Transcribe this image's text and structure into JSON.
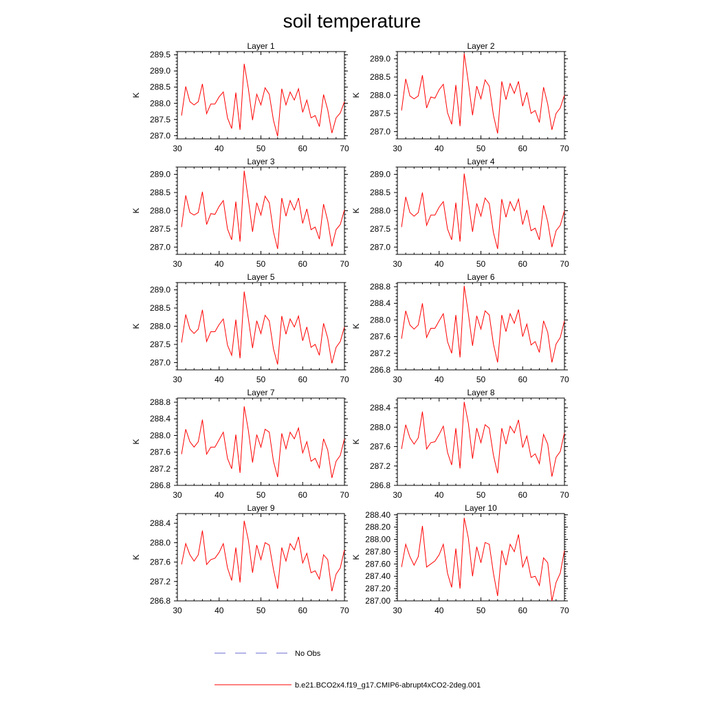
{
  "chart_data": {
    "type": "line",
    "title": "soil temperature",
    "x": [
      31,
      32,
      33,
      34,
      35,
      36,
      37,
      38,
      39,
      40,
      41,
      42,
      43,
      44,
      45,
      46,
      47,
      48,
      49,
      50,
      51,
      52,
      53,
      54,
      55,
      56,
      57,
      58,
      59,
      60,
      61,
      62,
      63,
      64,
      65,
      66,
      67,
      68,
      69,
      70
    ],
    "legend": [
      {
        "label": "No Obs",
        "style": "dashed",
        "color": "#6a6ad0"
      },
      {
        "label": "b.e21.BCO2x4.f19_g17.CMIP6-abrupt4xCO2-2deg.001",
        "style": "solid",
        "color": "#ff0000"
      }
    ],
    "panels": [
      {
        "title": "Layer 1",
        "ylabel": "K",
        "xlim": [
          30,
          70
        ],
        "ylim": [
          286.9,
          289.6
        ],
        "xticks": [
          "30",
          "40",
          "50",
          "60",
          "70"
        ],
        "yticks": [
          {
            "v": 287.0,
            "t": "287.0"
          },
          {
            "v": 287.5,
            "t": "287.5"
          },
          {
            "v": 288.0,
            "t": "288.0"
          },
          {
            "v": 288.5,
            "t": "288.5"
          },
          {
            "v": 289.0,
            "t": "289.0"
          },
          {
            "v": 289.5,
            "t": "289.5"
          }
        ],
        "series": [
          {
            "name": "b.e21.BCO2x4.f19_g17.CMIP6-abrupt4xCO2-2deg.001",
            "values": [
              287.62,
              288.52,
              288.05,
              287.95,
              288.05,
              288.6,
              287.68,
              287.98,
              287.98,
              288.2,
              288.35,
              287.55,
              287.22,
              288.33,
              287.18,
              289.22,
              288.45,
              287.48,
              288.28,
              287.95,
              288.48,
              288.28,
              287.48,
              286.98,
              288.45,
              287.95,
              288.35,
              288.1,
              288.45,
              287.72,
              288.1,
              287.55,
              287.62,
              287.28,
              288.27,
              287.8,
              287.08,
              287.55,
              287.7,
              288.05
            ]
          }
        ]
      },
      {
        "title": "Layer 2",
        "ylabel": "K",
        "xlim": [
          30,
          70
        ],
        "ylim": [
          286.8,
          289.2
        ],
        "xticks": [
          "30",
          "40",
          "50",
          "60",
          "70"
        ],
        "yticks": [
          {
            "v": 287.0,
            "t": "287.0"
          },
          {
            "v": 287.5,
            "t": "287.5"
          },
          {
            "v": 288.0,
            "t": "288.0"
          },
          {
            "v": 288.5,
            "t": "288.5"
          },
          {
            "v": 289.0,
            "t": "289.0"
          }
        ],
        "series": [
          {
            "name": "b.e21.BCO2x4.f19_g17.CMIP6-abrupt4xCO2-2deg.001",
            "values": [
              287.58,
              288.45,
              287.98,
              287.9,
              287.98,
              288.55,
              287.65,
              287.95,
              287.92,
              288.15,
              288.3,
              287.52,
              287.2,
              288.28,
              287.15,
              289.15,
              288.35,
              287.45,
              288.25,
              287.9,
              288.42,
              288.25,
              287.45,
              286.95,
              288.38,
              287.88,
              288.32,
              288.05,
              288.38,
              287.7,
              288.08,
              287.5,
              287.58,
              287.25,
              288.22,
              287.75,
              287.05,
              287.5,
              287.65,
              288.0
            ]
          }
        ]
      },
      {
        "title": "Layer 3",
        "ylabel": "K",
        "xlim": [
          30,
          70
        ],
        "ylim": [
          286.8,
          289.2
        ],
        "xticks": [
          "30",
          "40",
          "50",
          "60",
          "70"
        ],
        "yticks": [
          {
            "v": 287.0,
            "t": "287.0"
          },
          {
            "v": 287.5,
            "t": "287.5"
          },
          {
            "v": 288.0,
            "t": "288.0"
          },
          {
            "v": 288.5,
            "t": "288.5"
          },
          {
            "v": 289.0,
            "t": "289.0"
          }
        ],
        "series": [
          {
            "name": "b.e21.BCO2x4.f19_g17.CMIP6-abrupt4xCO2-2deg.001",
            "values": [
              287.55,
              288.42,
              287.95,
              287.88,
              287.95,
              288.52,
              287.62,
              287.92,
              287.9,
              288.12,
              288.28,
              287.5,
              287.2,
              288.25,
              287.15,
              289.1,
              288.3,
              287.42,
              288.22,
              287.88,
              288.4,
              288.22,
              287.42,
              286.95,
              288.35,
              287.85,
              288.28,
              288.02,
              288.35,
              287.65,
              288.05,
              287.48,
              287.55,
              287.22,
              288.18,
              287.72,
              287.02,
              287.48,
              287.62,
              288.02
            ]
          }
        ]
      },
      {
        "title": "Layer 4",
        "ylabel": "K",
        "xlim": [
          30,
          70
        ],
        "ylim": [
          286.8,
          289.2
        ],
        "xticks": [
          "30",
          "40",
          "50",
          "60",
          "70"
        ],
        "yticks": [
          {
            "v": 287.0,
            "t": "287.0"
          },
          {
            "v": 287.5,
            "t": "287.5"
          },
          {
            "v": 288.0,
            "t": "288.0"
          },
          {
            "v": 288.5,
            "t": "288.5"
          },
          {
            "v": 289.0,
            "t": "289.0"
          }
        ],
        "series": [
          {
            "name": "b.e21.BCO2x4.f19_g17.CMIP6-abrupt4xCO2-2deg.001",
            "values": [
              287.55,
              288.38,
              287.95,
              287.85,
              287.95,
              288.5,
              287.6,
              287.88,
              287.88,
              288.1,
              288.25,
              287.5,
              287.2,
              288.22,
              287.15,
              289.02,
              288.25,
              287.42,
              288.2,
              287.85,
              288.35,
              288.2,
              287.4,
              286.95,
              288.32,
              287.82,
              288.25,
              288.0,
              288.32,
              287.62,
              288.02,
              287.45,
              287.52,
              287.2,
              288.15,
              287.7,
              287.0,
              287.45,
              287.6,
              288.0
            ]
          }
        ]
      },
      {
        "title": "Layer 5",
        "ylabel": "K",
        "xlim": [
          30,
          70
        ],
        "ylim": [
          286.8,
          289.2
        ],
        "xticks": [
          "30",
          "40",
          "50",
          "60",
          "70"
        ],
        "yticks": [
          {
            "v": 287.0,
            "t": "287.0"
          },
          {
            "v": 287.5,
            "t": "287.5"
          },
          {
            "v": 288.0,
            "t": "288.0"
          },
          {
            "v": 288.5,
            "t": "288.5"
          },
          {
            "v": 289.0,
            "t": "289.0"
          }
        ],
        "series": [
          {
            "name": "b.e21.BCO2x4.f19_g17.CMIP6-abrupt4xCO2-2deg.001",
            "values": [
              287.55,
              288.32,
              287.92,
              287.8,
              287.92,
              288.45,
              287.58,
              287.85,
              287.85,
              288.05,
              288.2,
              287.48,
              287.2,
              288.18,
              287.12,
              288.95,
              288.2,
              287.4,
              288.15,
              287.8,
              288.3,
              288.15,
              287.38,
              286.95,
              288.28,
              287.78,
              288.2,
              287.98,
              288.28,
              287.6,
              287.98,
              287.42,
              287.5,
              287.2,
              288.08,
              287.68,
              286.98,
              287.42,
              287.58,
              287.98
            ]
          }
        ]
      },
      {
        "title": "Layer 6",
        "ylabel": "K",
        "xlim": [
          30,
          70
        ],
        "ylim": [
          286.8,
          288.9
        ],
        "xticks": [
          "30",
          "40",
          "50",
          "60",
          "70"
        ],
        "yticks": [
          {
            "v": 286.8,
            "t": "286.8"
          },
          {
            "v": 287.2,
            "t": "287.2"
          },
          {
            "v": 287.6,
            "t": "287.6"
          },
          {
            "v": 288.0,
            "t": "288.0"
          },
          {
            "v": 288.4,
            "t": "288.4"
          },
          {
            "v": 288.8,
            "t": "288.8"
          }
        ],
        "series": [
          {
            "name": "b.e21.BCO2x4.f19_g17.CMIP6-abrupt4xCO2-2deg.001",
            "values": [
              287.55,
              288.22,
              287.88,
              287.78,
              287.88,
              288.4,
              287.58,
              287.8,
              287.8,
              287.98,
              288.15,
              287.48,
              287.2,
              288.12,
              287.1,
              288.82,
              288.15,
              287.38,
              288.1,
              287.78,
              288.22,
              288.12,
              287.42,
              286.98,
              288.12,
              287.72,
              288.15,
              287.92,
              288.25,
              287.6,
              287.9,
              287.4,
              287.48,
              287.22,
              287.98,
              287.7,
              286.98,
              287.42,
              287.58,
              287.98
            ]
          }
        ]
      },
      {
        "title": "Layer 7",
        "ylabel": "K",
        "xlim": [
          30,
          70
        ],
        "ylim": [
          286.8,
          288.9
        ],
        "xticks": [
          "30",
          "40",
          "50",
          "60",
          "70"
        ],
        "yticks": [
          {
            "v": 286.8,
            "t": "286.8"
          },
          {
            "v": 287.2,
            "t": "287.2"
          },
          {
            "v": 287.6,
            "t": "287.6"
          },
          {
            "v": 288.0,
            "t": "288.0"
          },
          {
            "v": 288.4,
            "t": "288.4"
          },
          {
            "v": 288.8,
            "t": "288.8"
          }
        ],
        "series": [
          {
            "name": "b.e21.BCO2x4.f19_g17.CMIP6-abrupt4xCO2-2deg.001",
            "values": [
              287.55,
              288.15,
              287.85,
              287.72,
              287.85,
              288.38,
              287.55,
              287.72,
              287.72,
              287.9,
              288.08,
              287.45,
              287.2,
              288.02,
              287.1,
              288.7,
              288.12,
              287.35,
              288.02,
              287.72,
              288.15,
              288.08,
              287.38,
              287.0,
              288.05,
              287.68,
              288.08,
              287.92,
              288.18,
              287.58,
              287.85,
              287.38,
              287.45,
              287.22,
              287.92,
              287.65,
              286.98,
              287.38,
              287.52,
              287.92
            ]
          }
        ]
      },
      {
        "title": "Layer 8",
        "ylabel": "K",
        "xlim": [
          30,
          70
        ],
        "ylim": [
          286.8,
          288.6
        ],
        "xticks": [
          "30",
          "40",
          "50",
          "60",
          "70"
        ],
        "yticks": [
          {
            "v": 286.8,
            "t": "286.8"
          },
          {
            "v": 287.2,
            "t": "287.2"
          },
          {
            "v": 287.6,
            "t": "287.6"
          },
          {
            "v": 288.0,
            "t": "288.0"
          },
          {
            "v": 288.4,
            "t": "288.4"
          }
        ],
        "series": [
          {
            "name": "b.e21.BCO2x4.f19_g17.CMIP6-abrupt4xCO2-2deg.001",
            "values": [
              287.55,
              288.05,
              287.78,
              287.65,
              287.78,
              288.32,
              287.55,
              287.68,
              287.7,
              287.85,
              288.02,
              287.48,
              287.22,
              287.98,
              287.15,
              288.52,
              288.08,
              287.35,
              287.98,
              287.68,
              288.05,
              287.98,
              287.42,
              287.05,
              287.98,
              287.65,
              288.02,
              287.88,
              288.15,
              287.58,
              287.82,
              287.38,
              287.45,
              287.25,
              287.85,
              287.65,
              286.98,
              287.38,
              287.5,
              287.88
            ]
          }
        ]
      },
      {
        "title": "Layer 9",
        "ylabel": "K",
        "xlim": [
          30,
          70
        ],
        "ylim": [
          286.8,
          288.6
        ],
        "xticks": [
          "30",
          "40",
          "50",
          "60",
          "70"
        ],
        "yticks": [
          {
            "v": 286.8,
            "t": "286.8"
          },
          {
            "v": 287.2,
            "t": "287.2"
          },
          {
            "v": 287.6,
            "t": "287.6"
          },
          {
            "v": 288.0,
            "t": "288.0"
          },
          {
            "v": 288.4,
            "t": "288.4"
          }
        ],
        "series": [
          {
            "name": "b.e21.BCO2x4.f19_g17.CMIP6-abrupt4xCO2-2deg.001",
            "values": [
              287.55,
              287.98,
              287.75,
              287.62,
              287.75,
              288.25,
              287.55,
              287.65,
              287.68,
              287.8,
              287.98,
              287.48,
              287.22,
              287.9,
              287.18,
              288.45,
              288.05,
              287.38,
              287.95,
              287.65,
              288.0,
              287.95,
              287.45,
              287.05,
              287.9,
              287.62,
              287.98,
              287.85,
              288.12,
              287.58,
              287.78,
              287.38,
              287.42,
              287.25,
              287.75,
              287.65,
              287.0,
              287.35,
              287.48,
              287.85
            ]
          }
        ]
      },
      {
        "title": "Layer 10",
        "ylabel": "K",
        "xlim": [
          30,
          70
        ],
        "ylim": [
          287.0,
          288.42
        ],
        "xticks": [
          "30",
          "40",
          "50",
          "60",
          "70"
        ],
        "yticks": [
          {
            "v": 287.0,
            "t": "287.00"
          },
          {
            "v": 287.2,
            "t": "287.20"
          },
          {
            "v": 287.4,
            "t": "287.40"
          },
          {
            "v": 287.6,
            "t": "287.60"
          },
          {
            "v": 287.8,
            "t": "287.80"
          },
          {
            "v": 288.0,
            "t": "288.00"
          },
          {
            "v": 288.2,
            "t": "288.20"
          },
          {
            "v": 288.4,
            "t": "288.40"
          }
        ],
        "series": [
          {
            "name": "b.e21.BCO2x4.f19_g17.CMIP6-abrupt4xCO2-2deg.001",
            "values": [
              287.55,
              287.92,
              287.72,
              287.58,
              287.72,
              288.22,
              287.55,
              287.6,
              287.65,
              287.75,
              287.92,
              287.45,
              287.22,
              287.85,
              287.2,
              288.35,
              288.02,
              287.4,
              287.88,
              287.62,
              287.95,
              287.92,
              287.45,
              287.08,
              287.82,
              287.58,
              287.92,
              287.8,
              288.08,
              287.55,
              287.72,
              287.38,
              287.4,
              287.25,
              287.7,
              287.62,
              287.0,
              287.3,
              287.45,
              287.82
            ]
          }
        ]
      }
    ]
  }
}
